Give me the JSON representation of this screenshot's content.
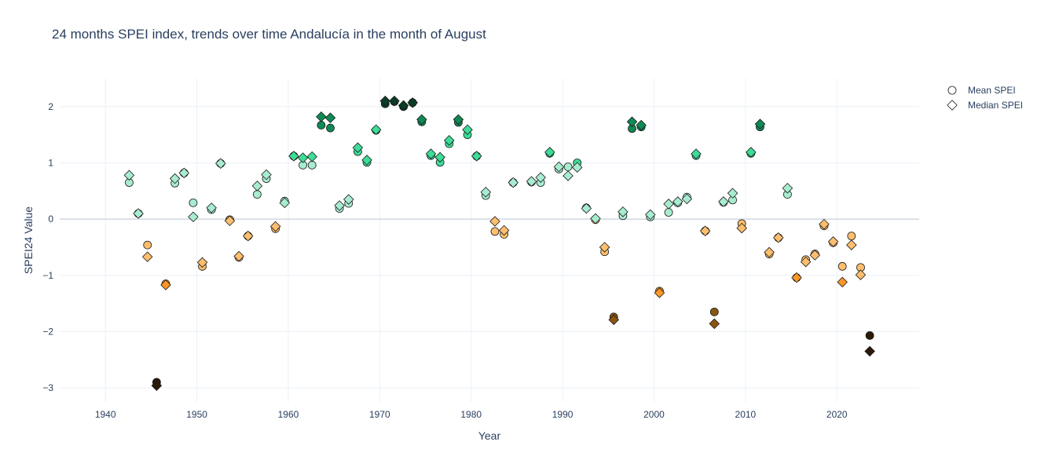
{
  "chart_data": {
    "type": "scatter",
    "title": "24 months SPEI index, trends over time Andalucía in the month of August",
    "xlabel": "Year",
    "ylabel": "SPEI24 Value",
    "xlim": [
      1935,
      2029
    ],
    "ylim": [
      -3.25,
      2.5
    ],
    "x_ticks": [
      1940,
      1950,
      1960,
      1970,
      1980,
      1990,
      2000,
      2010,
      2020
    ],
    "y_ticks": [
      2,
      1,
      0,
      -1,
      -2,
      -3
    ],
    "y_tick_labels": [
      "2",
      "1",
      "0",
      "−1",
      "−2",
      "−3"
    ],
    "grid": true,
    "legend_position": "top-right",
    "colors": {
      "positive_low": "#a8ecd0",
      "positive_mid": "#3ddc97",
      "positive_high": "#0f8a55",
      "positive_extreme": "#0b3d26",
      "negative_low": "#fdbe6e",
      "negative_mid": "#fb9628",
      "negative_high": "#8b5510",
      "negative_extreme": "#2b1a06",
      "grid": "#ebf0f8",
      "zeroline": "#d0d6e0"
    },
    "series": [
      {
        "name": "Mean SPEI",
        "marker": "circle",
        "x": [
          1942,
          1943,
          1944,
          1945,
          1946,
          1947,
          1948,
          1949,
          1950,
          1951,
          1952,
          1953,
          1954,
          1955,
          1956,
          1957,
          1958,
          1959,
          1960,
          1961,
          1962,
          1963,
          1964,
          1965,
          1966,
          1967,
          1968,
          1969,
          1970,
          1971,
          1972,
          1973,
          1974,
          1975,
          1976,
          1977,
          1978,
          1979,
          1980,
          1981,
          1982,
          1983,
          1984,
          1986,
          1987,
          1988,
          1989,
          1990,
          1991,
          1992,
          1993,
          1994,
          1995,
          1996,
          1997,
          1998,
          1999,
          2000,
          2001,
          2002,
          2003,
          2004,
          2005,
          2006,
          2007,
          2008,
          2009,
          2010,
          2011,
          2012,
          2013,
          2014,
          2015,
          2016,
          2017,
          2018,
          2019,
          2020,
          2021,
          2022,
          2023
        ],
        "values": [
          0.65,
          0.1,
          -0.46,
          -2.9,
          -1.15,
          0.64,
          0.82,
          0.29,
          -0.84,
          0.17,
          0.99,
          -0.01,
          -0.68,
          -0.3,
          0.44,
          0.72,
          -0.17,
          0.32,
          1.12,
          0.96,
          0.96,
          1.67,
          1.62,
          0.19,
          0.28,
          1.2,
          1.01,
          1.58,
          2.05,
          2.09,
          2.0,
          2.07,
          1.73,
          1.13,
          1.01,
          1.34,
          1.72,
          1.5,
          1.12,
          0.42,
          -0.22,
          -0.27,
          0.65,
          0.66,
          0.65,
          1.17,
          0.89,
          0.93,
          1.0,
          0.2,
          -0.01,
          -0.58,
          -1.74,
          0.06,
          1.61,
          1.64,
          0.04,
          -1.28,
          0.12,
          0.29,
          0.39,
          1.13,
          -0.21,
          -1.65,
          0.3,
          0.34,
          -0.08,
          1.17,
          1.64,
          -0.62,
          -0.33,
          0.44,
          -1.04,
          -0.72,
          -0.62,
          -0.12,
          -0.42,
          -0.84,
          -0.3,
          -0.86,
          -2.07
        ]
      },
      {
        "name": "Median SPEI",
        "marker": "diamond",
        "x": [
          1942,
          1943,
          1944,
          1945,
          1946,
          1947,
          1948,
          1949,
          1950,
          1951,
          1952,
          1953,
          1954,
          1955,
          1956,
          1957,
          1958,
          1959,
          1960,
          1961,
          1962,
          1963,
          1964,
          1965,
          1966,
          1967,
          1968,
          1969,
          1970,
          1971,
          1972,
          1973,
          1974,
          1975,
          1976,
          1977,
          1978,
          1979,
          1980,
          1981,
          1982,
          1983,
          1984,
          1986,
          1987,
          1988,
          1989,
          1990,
          1991,
          1992,
          1993,
          1994,
          1995,
          1996,
          1997,
          1998,
          1999,
          2000,
          2001,
          2002,
          2003,
          2004,
          2005,
          2006,
          2007,
          2008,
          2009,
          2010,
          2011,
          2012,
          2013,
          2014,
          2015,
          2016,
          2017,
          2018,
          2019,
          2020,
          2021,
          2022,
          2023
        ],
        "values": [
          0.78,
          0.1,
          -0.67,
          -2.96,
          -1.17,
          0.72,
          0.82,
          0.04,
          -0.77,
          0.2,
          0.99,
          -0.03,
          -0.66,
          -0.3,
          0.59,
          0.79,
          -0.13,
          0.29,
          1.12,
          1.09,
          1.11,
          1.82,
          1.8,
          0.24,
          0.35,
          1.27,
          1.05,
          1.59,
          2.1,
          2.1,
          2.02,
          2.07,
          1.77,
          1.16,
          1.1,
          1.4,
          1.77,
          1.59,
          1.12,
          0.48,
          -0.04,
          -0.2,
          0.65,
          0.67,
          0.74,
          1.19,
          0.93,
          0.77,
          0.92,
          0.19,
          0.01,
          -0.5,
          -1.79,
          0.13,
          1.73,
          1.67,
          0.08,
          -1.31,
          0.27,
          0.31,
          0.36,
          1.16,
          -0.21,
          -1.86,
          0.31,
          0.46,
          -0.16,
          1.19,
          1.69,
          -0.59,
          -0.33,
          0.55,
          -1.04,
          -0.76,
          -0.64,
          -0.09,
          -0.4,
          -1.12,
          -0.46,
          -0.99,
          -2.35
        ]
      }
    ]
  }
}
